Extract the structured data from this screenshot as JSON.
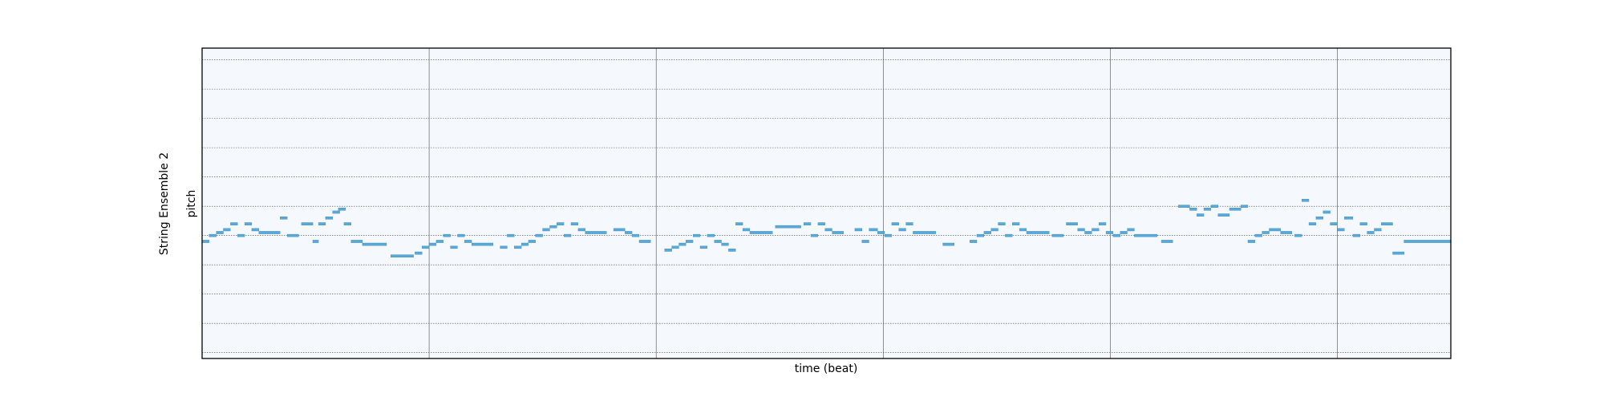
{
  "chart_data": {
    "type": "piano-roll",
    "track_label": "String Ensemble 2",
    "xlabel": "time (beat)",
    "ylabel": "pitch",
    "grid": true,
    "colors": {
      "background": "#f5f9fd",
      "note": "#5aa8d6",
      "note_edge": "#3d8fc4",
      "grid": "#4a4a4a",
      "frame": "#000000"
    },
    "xlim": [
      0,
      88
    ],
    "ylim": [
      0,
      106
    ],
    "hgrid": [
      2,
      12,
      22,
      32,
      42,
      52,
      62,
      72,
      82,
      92,
      102
    ],
    "vgrid": [
      16,
      32,
      48,
      64,
      80
    ],
    "notes": [
      [
        0.0,
        0.5,
        40
      ],
      [
        0.5,
        0.5,
        42
      ],
      [
        1.0,
        0.5,
        43
      ],
      [
        1.5,
        0.5,
        44
      ],
      [
        2.0,
        0.5,
        46
      ],
      [
        2.5,
        0.5,
        42
      ],
      [
        3.0,
        0.5,
        46
      ],
      [
        3.5,
        0.5,
        44
      ],
      [
        4.0,
        1.5,
        43
      ],
      [
        5.5,
        0.5,
        48
      ],
      [
        6.0,
        0.8,
        42
      ],
      [
        7.0,
        0.8,
        46
      ],
      [
        7.8,
        0.4,
        40
      ],
      [
        8.2,
        0.5,
        46
      ],
      [
        8.7,
        0.5,
        48
      ],
      [
        9.2,
        0.5,
        50
      ],
      [
        9.6,
        0.5,
        51
      ],
      [
        10.0,
        0.5,
        46
      ],
      [
        10.5,
        0.8,
        40
      ],
      [
        11.3,
        1.7,
        39
      ],
      [
        13.3,
        1.6,
        35
      ],
      [
        15.0,
        0.5,
        36
      ],
      [
        15.5,
        0.5,
        38
      ],
      [
        16.0,
        0.5,
        39
      ],
      [
        16.5,
        0.5,
        40
      ],
      [
        17.0,
        0.5,
        42
      ],
      [
        17.5,
        0.5,
        38
      ],
      [
        18.0,
        0.5,
        42
      ],
      [
        18.5,
        0.5,
        40
      ],
      [
        19.0,
        1.5,
        39
      ],
      [
        21.0,
        0.5,
        38
      ],
      [
        21.5,
        0.5,
        42
      ],
      [
        22.0,
        0.5,
        38
      ],
      [
        22.5,
        0.5,
        39
      ],
      [
        23.0,
        0.5,
        40
      ],
      [
        23.5,
        0.5,
        42
      ],
      [
        24.0,
        0.5,
        44
      ],
      [
        24.5,
        0.5,
        45
      ],
      [
        25.0,
        0.5,
        46
      ],
      [
        25.5,
        0.5,
        42
      ],
      [
        26.0,
        0.5,
        46
      ],
      [
        26.5,
        0.5,
        44
      ],
      [
        27.0,
        1.5,
        43
      ],
      [
        29.0,
        0.8,
        44
      ],
      [
        29.8,
        0.5,
        43
      ],
      [
        30.3,
        0.5,
        42
      ],
      [
        30.8,
        0.8,
        40
      ],
      [
        32.6,
        0.5,
        37
      ],
      [
        33.1,
        0.5,
        38
      ],
      [
        33.6,
        0.5,
        39
      ],
      [
        34.1,
        0.5,
        40
      ],
      [
        34.6,
        0.5,
        42
      ],
      [
        35.1,
        0.5,
        38
      ],
      [
        35.6,
        0.5,
        42
      ],
      [
        36.1,
        0.5,
        40
      ],
      [
        36.6,
        0.5,
        39
      ],
      [
        37.1,
        0.5,
        37
      ],
      [
        37.6,
        0.5,
        46
      ],
      [
        38.1,
        0.5,
        44
      ],
      [
        38.6,
        1.6,
        43
      ],
      [
        40.4,
        1.8,
        45
      ],
      [
        42.4,
        0.5,
        46
      ],
      [
        42.9,
        0.5,
        42
      ],
      [
        43.4,
        0.5,
        46
      ],
      [
        43.9,
        0.5,
        44
      ],
      [
        44.4,
        0.8,
        43
      ],
      [
        46.0,
        0.5,
        44
      ],
      [
        46.5,
        0.5,
        40
      ],
      [
        47.0,
        0.6,
        44
      ],
      [
        47.6,
        0.5,
        43
      ],
      [
        48.1,
        0.5,
        42
      ],
      [
        48.6,
        0.5,
        46
      ],
      [
        49.1,
        0.5,
        44
      ],
      [
        49.6,
        0.5,
        46
      ],
      [
        50.1,
        1.6,
        43
      ],
      [
        52.2,
        0.8,
        39
      ],
      [
        54.1,
        0.5,
        40
      ],
      [
        54.6,
        0.5,
        42
      ],
      [
        55.1,
        0.5,
        43
      ],
      [
        55.6,
        0.5,
        44
      ],
      [
        56.1,
        0.5,
        46
      ],
      [
        56.6,
        0.5,
        42
      ],
      [
        57.1,
        0.5,
        46
      ],
      [
        57.6,
        0.5,
        44
      ],
      [
        58.1,
        1.6,
        43
      ],
      [
        59.9,
        0.8,
        42
      ],
      [
        60.9,
        0.8,
        46
      ],
      [
        61.7,
        0.5,
        44
      ],
      [
        62.2,
        0.5,
        43
      ],
      [
        62.7,
        0.5,
        44
      ],
      [
        63.2,
        0.5,
        46
      ],
      [
        63.7,
        0.5,
        43
      ],
      [
        64.2,
        0.5,
        42
      ],
      [
        64.7,
        0.5,
        43
      ],
      [
        65.2,
        0.5,
        44
      ],
      [
        65.7,
        1.6,
        42
      ],
      [
        67.6,
        0.8,
        40
      ],
      [
        68.8,
        0.8,
        52
      ],
      [
        69.6,
        0.5,
        51
      ],
      [
        70.1,
        0.5,
        49
      ],
      [
        70.6,
        0.5,
        51
      ],
      [
        71.1,
        0.5,
        52
      ],
      [
        71.6,
        0.8,
        49
      ],
      [
        72.4,
        0.8,
        51
      ],
      [
        73.2,
        0.5,
        52
      ],
      [
        73.7,
        0.5,
        40
      ],
      [
        74.2,
        0.5,
        42
      ],
      [
        74.7,
        0.5,
        43
      ],
      [
        75.2,
        0.8,
        44
      ],
      [
        76.0,
        0.8,
        43
      ],
      [
        77.0,
        0.5,
        42
      ],
      [
        77.5,
        0.5,
        54
      ],
      [
        78.0,
        0.5,
        46
      ],
      [
        78.5,
        0.5,
        48
      ],
      [
        79.0,
        0.5,
        50
      ],
      [
        79.5,
        0.5,
        46
      ],
      [
        80.0,
        0.5,
        44
      ],
      [
        80.5,
        0.6,
        48
      ],
      [
        81.1,
        0.5,
        42
      ],
      [
        81.6,
        0.5,
        46
      ],
      [
        82.1,
        0.5,
        43
      ],
      [
        82.6,
        0.5,
        44
      ],
      [
        83.1,
        0.8,
        46
      ],
      [
        83.9,
        0.8,
        36
      ],
      [
        84.7,
        3.3,
        40
      ]
    ]
  }
}
